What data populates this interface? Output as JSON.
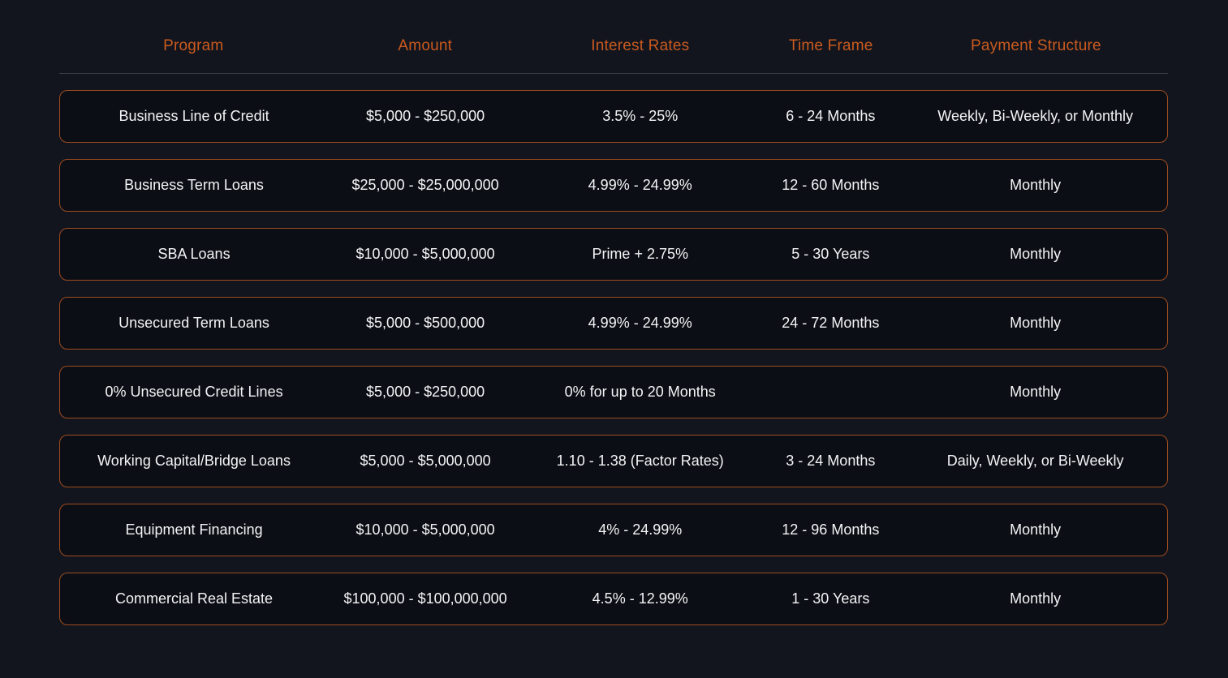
{
  "table": {
    "headers": [
      "Program",
      "Amount",
      "Interest Rates",
      "Time Frame",
      "Payment Structure"
    ],
    "rows": [
      [
        "Business Line of Credit",
        "$5,000 - $250,000",
        "3.5% - 25%",
        "6 - 24 Months",
        "Weekly, Bi-Weekly, or Monthly"
      ],
      [
        "Business Term Loans",
        "$25,000 - $25,000,000",
        "4.99% - 24.99%",
        "12 - 60 Months",
        "Monthly"
      ],
      [
        "SBA Loans",
        "$10,000 - $5,000,000",
        "Prime + 2.75%",
        "5 - 30 Years",
        "Monthly"
      ],
      [
        "Unsecured Term Loans",
        "$5,000 - $500,000",
        "4.99% - 24.99%",
        "24 - 72 Months",
        "Monthly"
      ],
      [
        "0% Unsecured Credit Lines",
        "$5,000 - $250,000",
        "0% for up to 20 Months",
        "",
        "Monthly"
      ],
      [
        "Working Capital/Bridge Loans",
        "$5,000 - $5,000,000",
        "1.10 - 1.38 (Factor Rates)",
        "3 - 24 Months",
        "Daily, Weekly, or Bi-Weekly"
      ],
      [
        "Equipment Financing",
        "$10,000 - $5,000,000",
        "4% - 24.99%",
        "12 - 96 Months",
        "Monthly"
      ],
      [
        "Commercial Real Estate",
        "$100,000 - $100,000,000",
        "4.5% - 12.99%",
        "1 - 30 Years",
        "Monthly"
      ]
    ],
    "colors": {
      "page_background": "#12151e",
      "row_background": "#0c0e15",
      "row_border": "#9e4c1f",
      "header_text": "#ca5a1e",
      "cell_text": "#f3f4f6",
      "header_divider": "#3c4049"
    }
  }
}
